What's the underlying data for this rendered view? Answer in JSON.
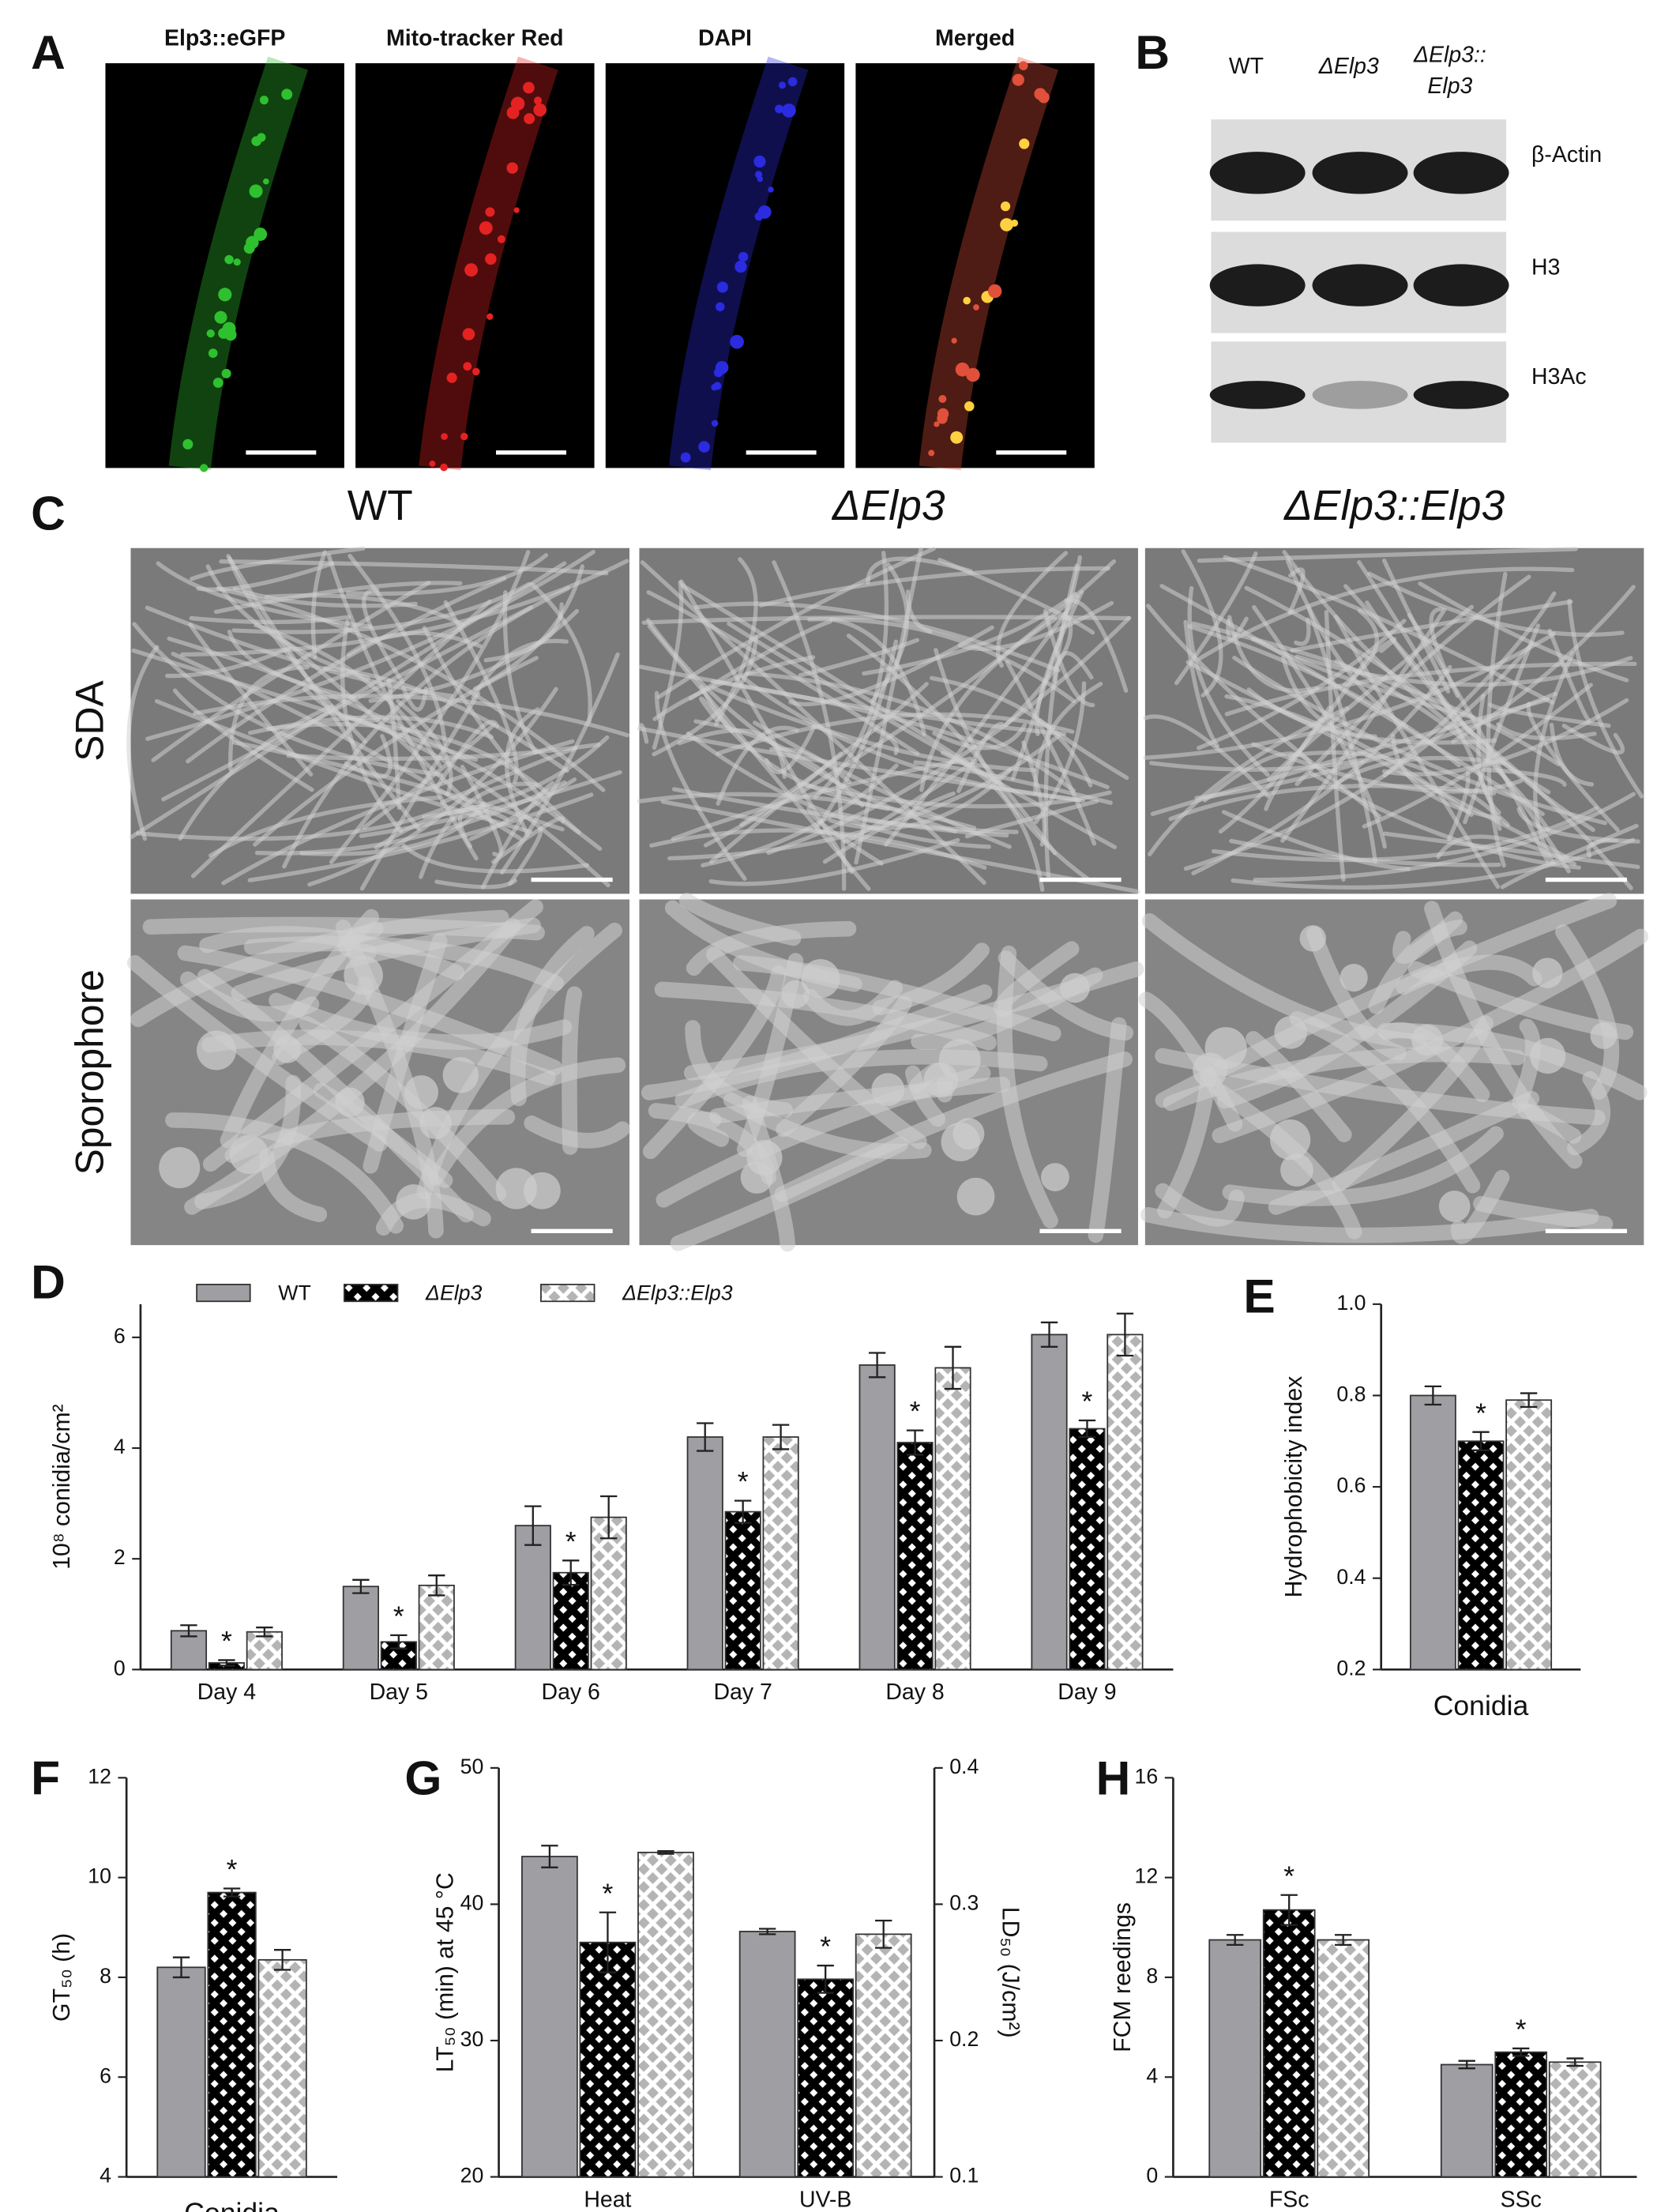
{
  "panel_labels": [
    "A",
    "B",
    "C"
  ],
  "panel_a": {
    "channels": [
      "Elp3::eGFP",
      "Mito-tracker Red",
      "DAPI",
      "Merged"
    ]
  },
  "panel_b": {
    "columns": [
      [
        "WT"
      ],
      [
        "ΔElp3"
      ],
      [
        "ΔElp3::",
        "Elp3"
      ]
    ],
    "rows": [
      "β-Actin",
      "H3",
      "H3Ac"
    ]
  },
  "panel_c": {
    "columns": [
      "WT",
      "ΔElp3",
      "ΔElp3::Elp3"
    ],
    "rows": [
      "SDA",
      "Sporophore"
    ]
  },
  "chart_data": [
    {
      "type": "bar",
      "label": "D",
      "ylabel": "10⁸ conidia/cm²",
      "categories": [
        "Day 4",
        "Day 5",
        "Day 6",
        "Day 7",
        "Day 8",
        "Day 9"
      ],
      "series": [
        {
          "name": "WT",
          "color": "#9e9ea3",
          "pattern": "solid",
          "values": [
            0.7,
            1.5,
            2.6,
            4.2,
            5.5,
            6.05
          ],
          "errors": [
            0.1,
            0.12,
            0.35,
            0.25,
            0.22,
            0.22
          ]
        },
        {
          "name": "ΔElp3",
          "color": "#000000",
          "pattern": "checker",
          "values": [
            0.12,
            0.5,
            1.75,
            2.85,
            4.1,
            4.35
          ],
          "errors": [
            0.05,
            0.12,
            0.22,
            0.2,
            0.22,
            0.15
          ],
          "annotations": [
            "*",
            "*",
            "*",
            "*",
            "*",
            "*"
          ]
        },
        {
          "name": "ΔElp3::Elp3",
          "color": "#b4b4b4",
          "pattern": "diamond",
          "values": [
            0.68,
            1.52,
            2.75,
            4.2,
            5.45,
            6.05
          ],
          "errors": [
            0.08,
            0.18,
            0.38,
            0.22,
            0.38,
            0.38
          ]
        }
      ],
      "ylim": [
        0,
        6.6
      ],
      "yticks": [
        0,
        2,
        4,
        6
      ],
      "legend": "top"
    },
    {
      "type": "bar",
      "label": "E",
      "ylabel": "Hydrophobicity index",
      "xlabel": "Conidia",
      "categories": [
        null
      ],
      "series": [
        {
          "name": "WT",
          "color": "#9e9ea3",
          "pattern": "solid",
          "values": [
            0.8
          ],
          "errors": [
            0.02
          ]
        },
        {
          "name": "ΔElp3",
          "color": "#000000",
          "pattern": "checker",
          "values": [
            0.7
          ],
          "errors": [
            0.02
          ],
          "annotations": [
            "*"
          ]
        },
        {
          "name": "ΔElp3::Elp3",
          "color": "#b4b4b4",
          "pattern": "diamond",
          "values": [
            0.79
          ],
          "errors": [
            0.015
          ]
        }
      ],
      "ylim": [
        0.2,
        1
      ],
      "yticks": [
        0.2,
        0.4,
        0.6,
        0.8,
        {
          "value": 1,
          "label": "1.0"
        }
      ]
    },
    {
      "type": "bar",
      "label": "F",
      "ylabel": "GT₅₀ (h)",
      "xlabel": "Conidia",
      "categories": [
        null
      ],
      "series": [
        {
          "name": "WT",
          "color": "#9e9ea3",
          "pattern": "solid",
          "values": [
            8.2
          ],
          "errors": [
            0.2
          ]
        },
        {
          "name": "ΔElp3",
          "color": "#000000",
          "pattern": "checker",
          "values": [
            9.7
          ],
          "errors": [
            0.08
          ],
          "annotations": [
            "*"
          ]
        },
        {
          "name": "ΔElp3::Elp3",
          "color": "#b4b4b4",
          "pattern": "diamond",
          "values": [
            8.35
          ],
          "errors": [
            0.2
          ]
        }
      ],
      "ylim": [
        4,
        12
      ],
      "yticks": [
        4,
        6,
        8,
        10,
        12
      ]
    },
    {
      "type": "bar",
      "label": "G",
      "ylabel": "LT₅₀ (min) at 45 °C",
      "y2label": "LD₅₀ (J/cm²)",
      "categories": [
        "Heat",
        "UV-B"
      ],
      "category_axes": [
        "y",
        "y2"
      ],
      "series": [
        {
          "name": "WT",
          "color": "#9e9ea3",
          "pattern": "solid",
          "values": [
            43.5,
            0.28
          ],
          "errors": [
            0.8,
            0.002
          ]
        },
        {
          "name": "ΔElp3",
          "color": "#000000",
          "pattern": "checker",
          "values": [
            37.2,
            0.245
          ],
          "errors": [
            2.2,
            0.01
          ],
          "annotations": [
            "*",
            "*"
          ]
        },
        {
          "name": "ΔElp3::Elp3",
          "color": "#b4b4b4",
          "pattern": "diamond",
          "values": [
            43.8,
            0.278
          ],
          "errors": [
            0.1,
            0.01
          ]
        }
      ],
      "ylim": [
        20,
        50
      ],
      "yticks": [
        20,
        30,
        40,
        50
      ],
      "y2lim": [
        0.1,
        0.4
      ],
      "y2ticks": [
        0.1,
        0.2,
        0.3,
        0.4
      ]
    },
    {
      "type": "bar",
      "label": "H",
      "ylabel": "FCM reedings",
      "categories": [
        "FSc",
        "SSc"
      ],
      "series": [
        {
          "name": "WT",
          "color": "#9e9ea3",
          "pattern": "solid",
          "values": [
            9.5,
            4.5
          ],
          "errors": [
            0.2,
            0.15
          ]
        },
        {
          "name": "ΔElp3",
          "color": "#000000",
          "pattern": "checker",
          "values": [
            10.7,
            5.0
          ],
          "errors": [
            0.6,
            0.15
          ],
          "annotations": [
            "*",
            "*"
          ]
        },
        {
          "name": "ΔElp3::Elp3",
          "color": "#b4b4b4",
          "pattern": "diamond",
          "values": [
            9.5,
            4.6
          ],
          "errors": [
            0.2,
            0.15
          ]
        }
      ],
      "ylim": [
        0,
        16
      ],
      "yticks": [
        0,
        4,
        8,
        12,
        16
      ]
    }
  ]
}
